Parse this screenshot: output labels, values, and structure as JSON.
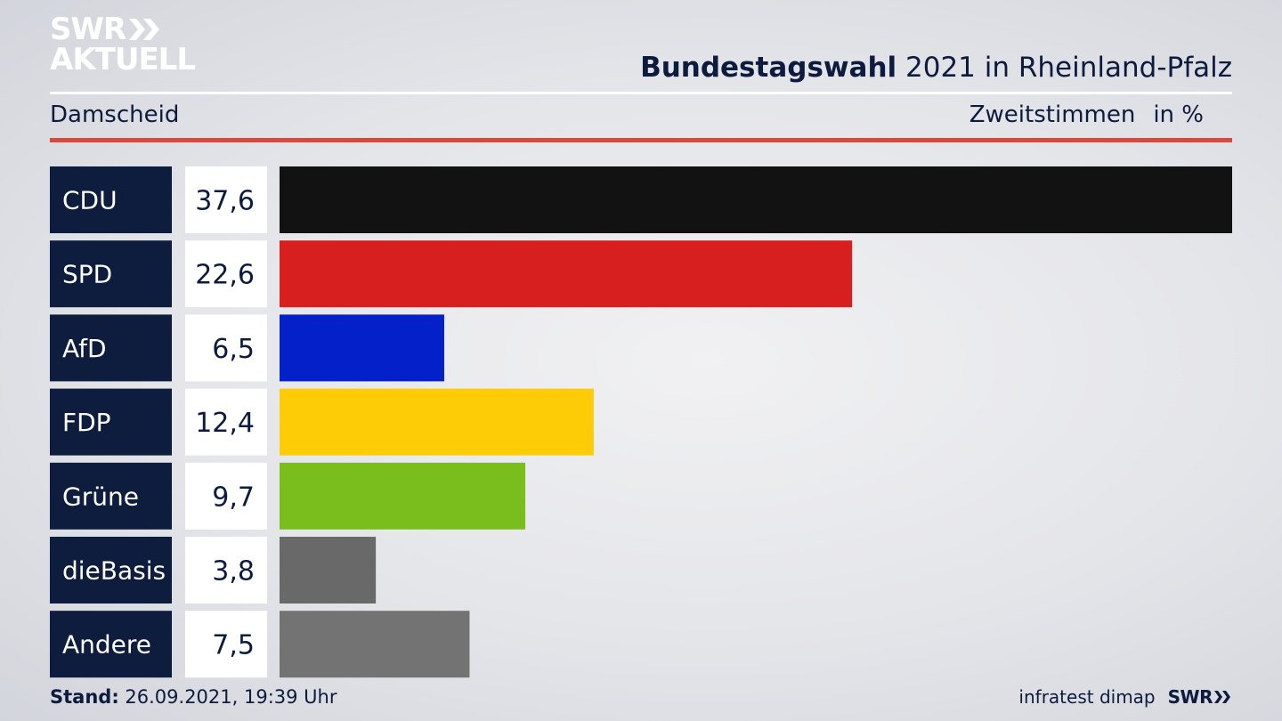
{
  "logo": {
    "line1": "SWR",
    "line2": "AKTUELL"
  },
  "header": {
    "title_bold": "Bundestagswahl",
    "title_rest": " 2021 in Rheinland-Pfalz",
    "location": "Damscheid",
    "vote_type": "Zweitstimmen",
    "unit": "in %"
  },
  "footer": {
    "stand_label": "Stand:",
    "stand_value": " 26.09.2021, 19:39 Uhr",
    "source": "infratest dimap",
    "brand": "SWR"
  },
  "chart_data": {
    "type": "bar",
    "orientation": "horizontal",
    "categories": [
      "CDU",
      "SPD",
      "AfD",
      "FDP",
      "Grüne",
      "dieBasis",
      "Andere"
    ],
    "values": [
      37.6,
      22.6,
      6.5,
      12.4,
      9.7,
      3.8,
      7.5
    ],
    "value_labels": [
      "37,6",
      "22,6",
      "6,5",
      "12,4",
      "9,7",
      "3,8",
      "7,5"
    ],
    "colors": [
      "#121212",
      "#d71f1f",
      "#0320c9",
      "#fdcc07",
      "#79be1d",
      "#696969",
      "#737373"
    ],
    "xlim": [
      0,
      37.6
    ],
    "grid": false,
    "legend": "none"
  }
}
